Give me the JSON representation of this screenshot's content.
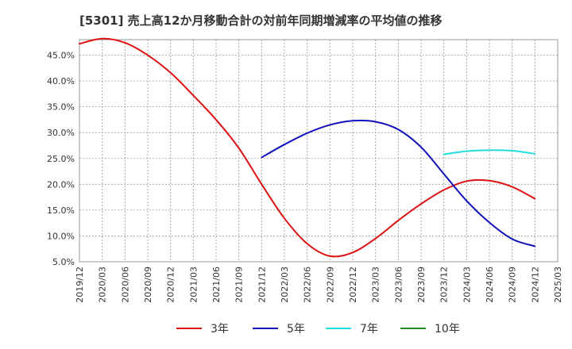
{
  "chart_data": {
    "type": "line",
    "title": "[5301]  売上高12か月移動合計の対前年同期増減率の平均値の推移",
    "xlabel": "",
    "ylabel": "",
    "ylim": [
      5.0,
      48.0
    ],
    "y_ticks": [
      "5.0%",
      "10.0%",
      "15.0%",
      "20.0%",
      "25.0%",
      "30.0%",
      "35.0%",
      "40.0%",
      "45.0%"
    ],
    "y_tick_values": [
      5,
      10,
      15,
      20,
      25,
      30,
      35,
      40,
      45
    ],
    "x_ticks": [
      "2019/12",
      "2020/03",
      "2020/06",
      "2020/09",
      "2020/12",
      "2021/03",
      "2021/06",
      "2021/09",
      "2021/12",
      "2022/03",
      "2022/06",
      "2022/09",
      "2022/12",
      "2023/03",
      "2023/06",
      "2023/09",
      "2023/12",
      "2024/03",
      "2024/06",
      "2024/09",
      "2024/12",
      "2025/03"
    ],
    "grid": true,
    "legend_position": "bottom",
    "series": [
      {
        "name": "3年",
        "color": "#dd1111",
        "x": [
          "2019/12",
          "2020/03",
          "2020/06",
          "2020/09",
          "2020/12",
          "2021/03",
          "2021/06",
          "2021/09",
          "2021/12",
          "2022/03",
          "2022/06",
          "2022/09",
          "2022/12",
          "2023/03",
          "2023/06",
          "2023/09",
          "2023/12",
          "2024/03",
          "2024/06",
          "2024/09",
          "2024/12"
        ],
        "values": [
          47.2,
          48.2,
          47.4,
          45.0,
          41.6,
          37.2,
          32.5,
          27.0,
          20.0,
          13.4,
          8.5,
          6.1,
          6.8,
          9.5,
          13.0,
          16.2,
          18.9,
          20.6,
          20.7,
          19.5,
          17.2
        ]
      },
      {
        "name": "5年",
        "color": "#1111bb",
        "x": [
          "2021/12",
          "2022/03",
          "2022/06",
          "2022/09",
          "2022/12",
          "2023/03",
          "2023/06",
          "2023/09",
          "2023/12",
          "2024/03",
          "2024/06",
          "2024/09",
          "2024/12"
        ],
        "values": [
          25.2,
          27.7,
          29.9,
          31.5,
          32.3,
          32.1,
          30.6,
          27.2,
          22.0,
          16.8,
          12.6,
          9.4,
          8.0
        ]
      },
      {
        "name": "7年",
        "color": "#22dddd",
        "x": [
          "2023/12",
          "2024/03",
          "2024/06",
          "2024/09",
          "2024/12"
        ],
        "values": [
          25.8,
          26.4,
          26.6,
          26.5,
          25.9
        ]
      },
      {
        "name": "10年",
        "color": "#228822",
        "x": [],
        "values": []
      }
    ]
  }
}
